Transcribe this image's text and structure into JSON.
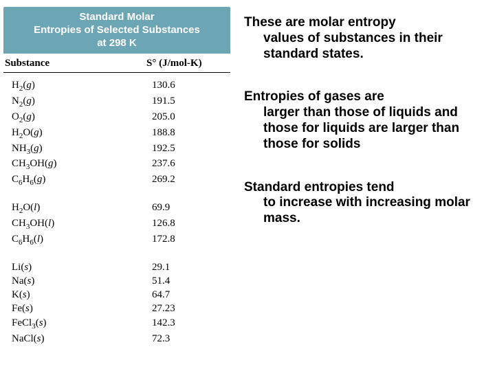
{
  "table": {
    "headerLine1": "Standard Molar",
    "headerLine2": "Entropies of Selected Substances",
    "headerLine3": "at 298 K",
    "colSubstance": "Substance",
    "colValue": "S° (J/mol-K)",
    "groups": [
      {
        "rows": [
          {
            "formula": "H<sub>2</sub>(<i>g</i>)",
            "value": "130.6"
          },
          {
            "formula": "N<sub>2</sub>(<i>g</i>)",
            "value": "191.5"
          },
          {
            "formula": "O<sub>2</sub>(<i>g</i>)",
            "value": "205.0"
          },
          {
            "formula": "H<sub>2</sub>O(<i>g</i>)",
            "value": "188.8"
          },
          {
            "formula": "NH<sub>3</sub>(<i>g</i>)",
            "value": "192.5"
          },
          {
            "formula": "CH<sub>3</sub>OH(<i>g</i>)",
            "value": "237.6"
          },
          {
            "formula": "C<sub>6</sub>H<sub>6</sub>(<i>g</i>)",
            "value": "269.2"
          }
        ]
      },
      {
        "rows": [
          {
            "formula": "H<sub>2</sub>O(<i>l</i>)",
            "value": "69.9"
          },
          {
            "formula": "CH<sub>3</sub>OH(<i>l</i>)",
            "value": "126.8"
          },
          {
            "formula": "C<sub>6</sub>H<sub>6</sub>(<i>l</i>)",
            "value": "172.8"
          }
        ]
      },
      {
        "rows": [
          {
            "formula": "Li(<i>s</i>)",
            "value": "29.1"
          },
          {
            "formula": "Na(<i>s</i>)",
            "value": "51.4"
          },
          {
            "formula": "K(<i>s</i>)",
            "value": "64.7"
          },
          {
            "formula": "Fe(<i>s</i>)",
            "value": "27.23"
          },
          {
            "formula": "FeCl<sub>3</sub>(<i>s</i>)",
            "value": "142.3"
          },
          {
            "formula": "NaCl(<i>s</i>)",
            "value": "72.3"
          }
        ]
      }
    ]
  },
  "bullets": {
    "b1_first": "These are molar entropy",
    "b1_rest": "values of substances in their standard states.",
    "b2_first": "Entropies of gases are",
    "b2_rest": "larger than those of liquids and those for liquids are larger than those for solids",
    "b3_first": "Standard entropies tend",
    "b3_rest": "to increase with increasing molar mass."
  },
  "colors": {
    "headerBg": "#6ca5b3",
    "headerText": "#ffffff",
    "bodyText": "#000000"
  }
}
